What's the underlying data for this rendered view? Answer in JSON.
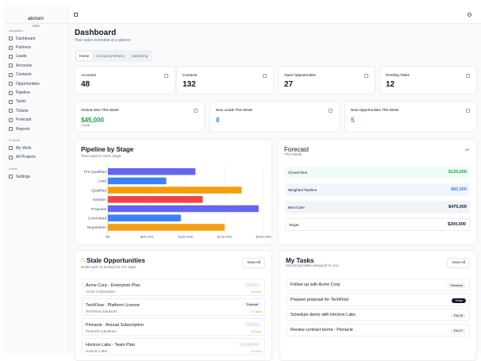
{
  "brand": {
    "name": "atonom",
    "sub": "CRM"
  },
  "sidebar": {
    "sections": [
      {
        "label": "Navigation",
        "items": [
          "Dashboard",
          "Partners",
          "Leads",
          "Accounts",
          "Contacts",
          "Opportunities",
          "Pipeline",
          "Tasks",
          "Tickets",
          "Forecast",
          "Reports"
        ]
      },
      {
        "label": "Projects",
        "items": [
          "My Work",
          "All Projects"
        ]
      },
      {
        "label": "Admin",
        "items": [
          "Settings"
        ]
      }
    ]
  },
  "header": {
    "title": "Dashboard",
    "subtitle": "Your sales overview at a glance"
  },
  "tabs": [
    "Home",
    "Company Metrics",
    "Marketing"
  ],
  "stats": [
    {
      "label": "Accounts",
      "value": "48"
    },
    {
      "label": "Contacts",
      "value": "132"
    },
    {
      "label": "Open Opportunities",
      "value": "27"
    },
    {
      "label": "Pending Tasks",
      "value": "12"
    }
  ],
  "weekly": [
    {
      "label": "Closed Won This Week",
      "value": "$45,000",
      "note": "3 deals",
      "color": "#16a34a"
    },
    {
      "label": "New Leads This Week",
      "value": "8",
      "color": "#3b82f6"
    },
    {
      "label": "New Opportunities This Week",
      "value": "5",
      "color": "#a855f7"
    }
  ],
  "pipeline": {
    "title": "Pipeline by Stage",
    "subtitle": "Total value in each stage"
  },
  "chart_data": {
    "type": "bar",
    "orientation": "horizontal",
    "categories": [
      "Pre-Qualified",
      "Lead",
      "Qualified",
      "Solution",
      "Proposal",
      "Committed",
      "Negotiation"
    ],
    "values": [
      180000,
      120000,
      275000,
      195000,
      310000,
      150000,
      240000
    ],
    "colors": [
      "#6366f1",
      "#3b82f6",
      "#f59e0b",
      "#ef4444",
      "#6366f1",
      "#3b82f6",
      "#f59e0b"
    ],
    "xlim": [
      0,
      320000
    ],
    "xticks": [
      "$0",
      "$80,000",
      "$160,000",
      "$240,000",
      "$320,000"
    ],
    "grid": true
  },
  "forecast": {
    "title": "Forecast",
    "subtitle": "This Month",
    "rows": [
      {
        "label": "Closed Won",
        "value": "$125,000",
        "bg": "#f0fdf4",
        "color": "#16a34a"
      },
      {
        "label": "Weighted Pipeline",
        "value": "$82,500",
        "bg": "#eff6ff",
        "color": "#3b82f6"
      },
      {
        "label": "Best Case",
        "value": "$475,000",
        "bg": "#f1f5f9",
        "color": "#111827"
      },
      {
        "label": "Target",
        "value": "$200,000",
        "bg": "#ffffff",
        "color": "#111827"
      }
    ]
  },
  "stale": {
    "title": "Stale Opportunities",
    "subtitle": "Deals with no activity for 14+ days",
    "view_all": "View All",
    "items": [
      {
        "name": "Acme Corp - Enterprise Plan",
        "company": "Acme Corporation",
        "stage": "Qualified",
        "days": "28 days"
      },
      {
        "name": "TechFlow - Platform License",
        "company": "TechFlow Solutions",
        "stage": "Proposal",
        "days": "21 days"
      },
      {
        "name": "Pinnacle - Annual Subscription",
        "company": "Pinnacle Industries",
        "stage": "Solution",
        "days": "18 days"
      },
      {
        "name": "Horizon Labs - Team Plan",
        "company": "Horizon Labs",
        "stage": "Pre-Qualified",
        "days": "16 days"
      }
    ]
  },
  "tasks": {
    "title": "My Tasks",
    "subtitle": "Upcoming tasks assigned to you",
    "view_all": "View All",
    "items": [
      {
        "name": "Follow up with Acme Corp",
        "due": "Tomorrow"
      },
      {
        "name": "Prepare proposal for TechFlow",
        "due": "Today"
      },
      {
        "name": "Schedule demo with Horizon Labs",
        "due": "Feb 25"
      },
      {
        "name": "Review contract terms - Pinnacle",
        "due": "Feb 27"
      }
    ]
  }
}
